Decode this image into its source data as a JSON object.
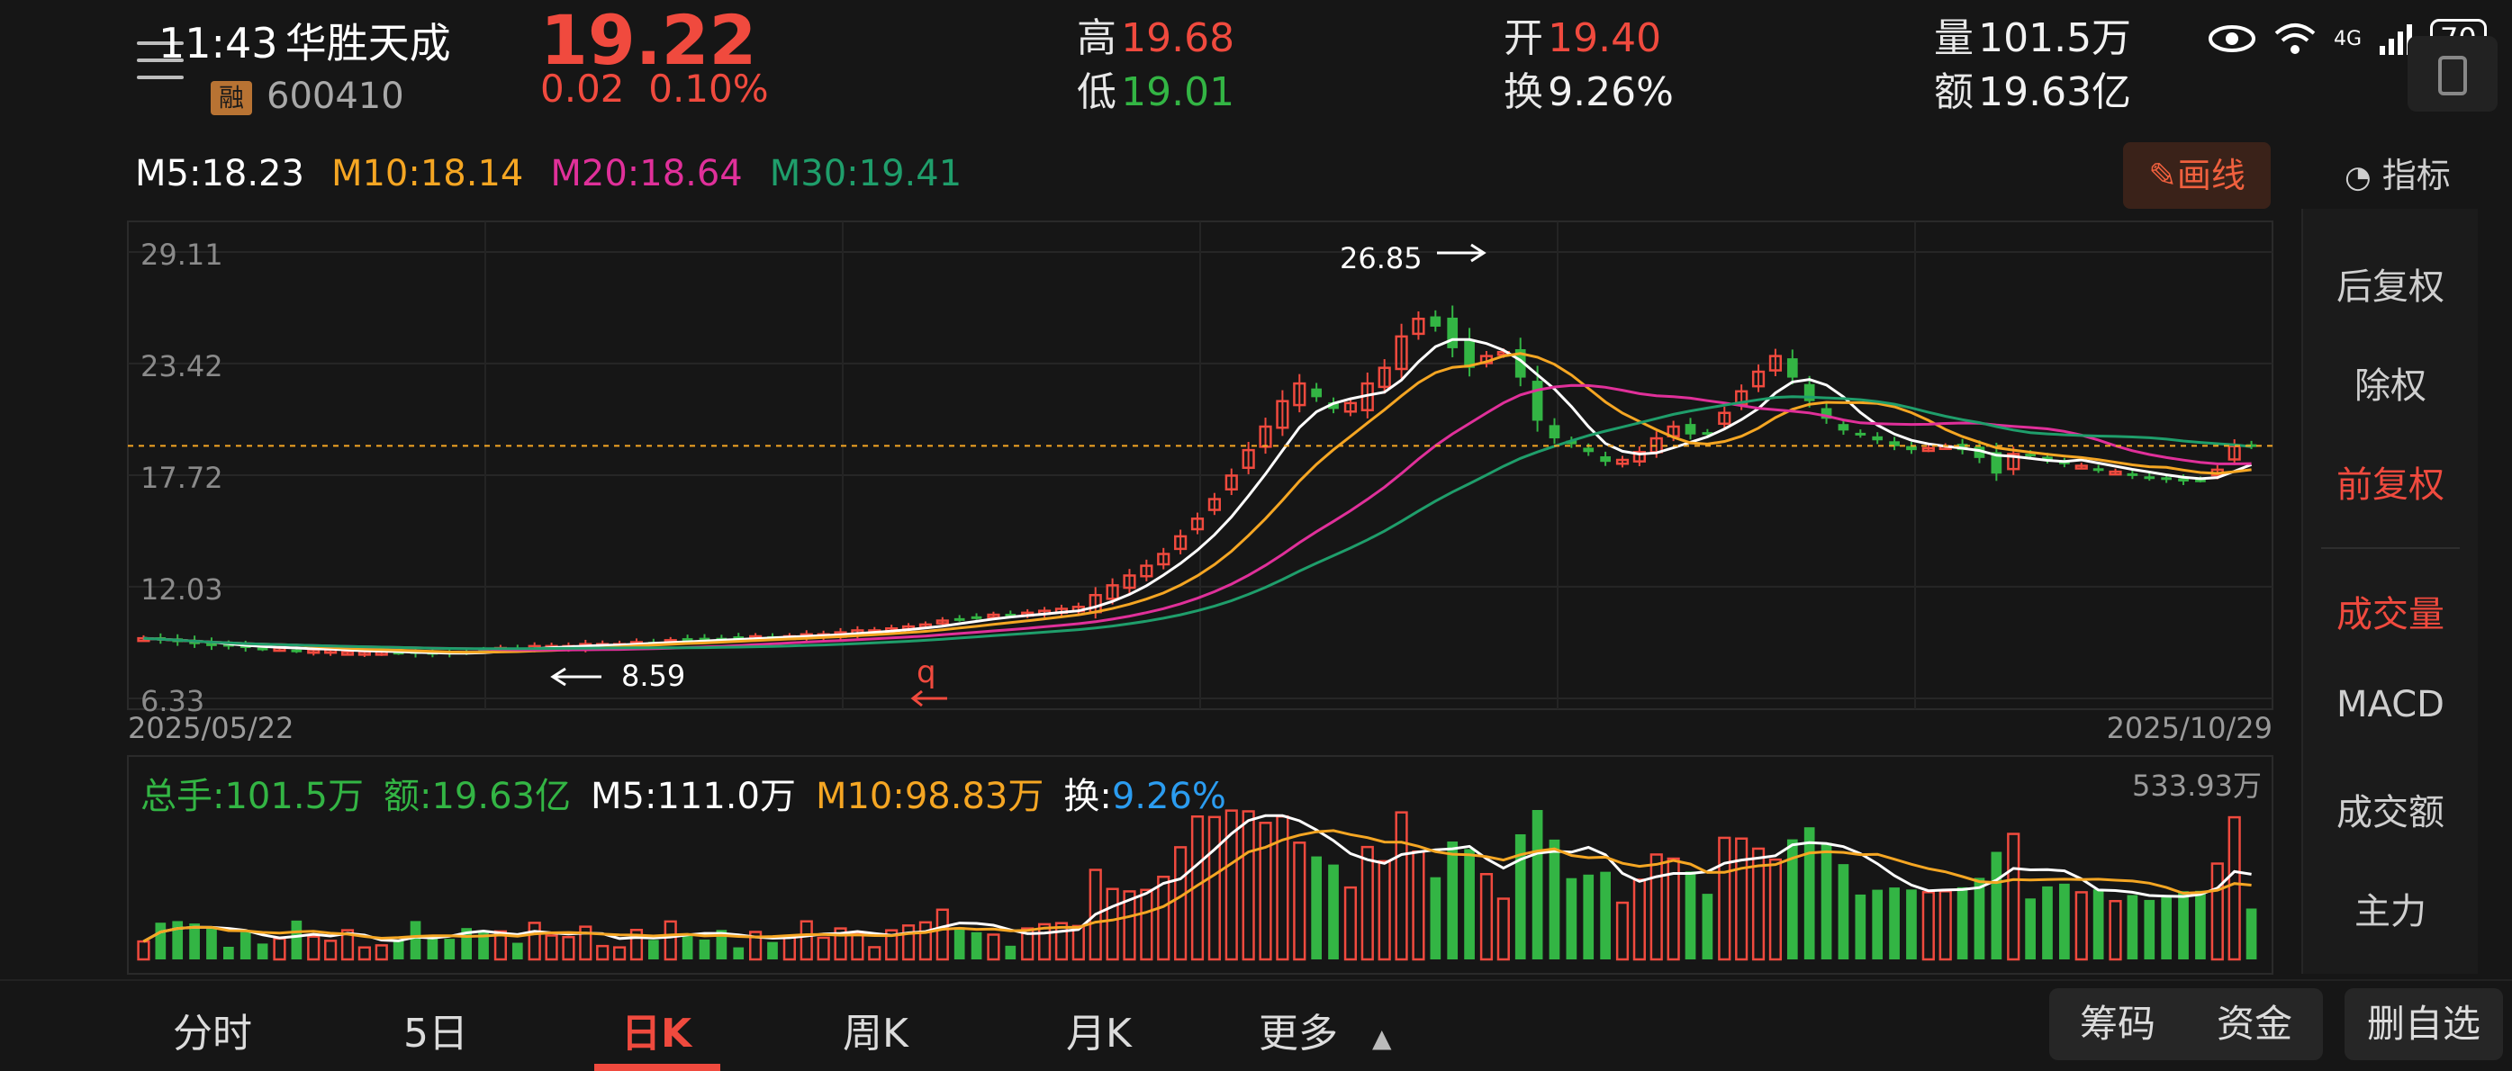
{
  "status_bar": {
    "time": "11:43",
    "network": "4G",
    "battery": "70"
  },
  "stock": {
    "name": "华胜天成",
    "code": "600410",
    "margin_badge": "融",
    "price": "19.22",
    "change": "0.02",
    "change_pct": "0.10%"
  },
  "quote": {
    "high_label": "高",
    "high": "19.68",
    "low_label": "低",
    "low": "19.01",
    "open_label": "开",
    "open": "19.40",
    "turnover_label": "换",
    "turnover": "9.26%",
    "volume_label": "量",
    "volume": "101.5万",
    "amount_label": "额",
    "amount": "19.63亿"
  },
  "ma": {
    "m5": "M5:18.23",
    "m10": "M10:18.14",
    "m20": "M20:18.64",
    "m30": "M30:19.41"
  },
  "toolbar": {
    "draw_label": "✎画线",
    "indicator_label": "指标"
  },
  "colors": {
    "up": "#f04a3e",
    "down": "#33b544",
    "m5": "#ffffff",
    "m10": "#f5a623",
    "m20": "#e0309a",
    "m30": "#1f9e6b",
    "turnover_blue": "#2b9cf0"
  },
  "chart_data": {
    "type": "candlestick",
    "y_ticks": [
      "29.11",
      "23.42",
      "17.72",
      "12.03",
      "6.33"
    ],
    "x_start": "2025/05/22",
    "x_end": "2025/10/29",
    "high_marker": "26.85",
    "low_marker": "8.59",
    "event_marker": "q",
    "current_price": 19.22,
    "ylim": [
      6.33,
      29.11
    ],
    "close": [
      9.4,
      9.3,
      9.2,
      9.1,
      9.0,
      9.0,
      8.9,
      8.9,
      8.9,
      8.8,
      8.8,
      8.8,
      8.7,
      8.7,
      8.7,
      8.7,
      8.6,
      8.6,
      8.6,
      8.7,
      8.8,
      8.9,
      8.9,
      9.0,
      9.0,
      9.0,
      9.1,
      9.1,
      9.1,
      9.2,
      9.2,
      9.3,
      9.3,
      9.3,
      9.4,
      9.4,
      9.5,
      9.5,
      9.5,
      9.6,
      9.6,
      9.7,
      9.8,
      9.8,
      9.9,
      10.0,
      10.1,
      10.3,
      10.4,
      10.5,
      10.6,
      10.6,
      10.7,
      10.8,
      10.9,
      11.0,
      11.6,
      12.1,
      12.6,
      13.1,
      13.7,
      14.6,
      15.5,
      16.5,
      17.7,
      19.0,
      20.2,
      21.5,
      22.4,
      21.7,
      21.1,
      21.4,
      22.4,
      23.2,
      24.8,
      25.7,
      25.3,
      24.2,
      23.2,
      23.8,
      24.0,
      22.7,
      20.5,
      19.6,
      19.3,
      18.9,
      18.4,
      18.5,
      18.9,
      19.6,
      20.2,
      19.8,
      19.9,
      20.9,
      22.0,
      23.0,
      23.8,
      22.7,
      21.5,
      20.6,
      20.0,
      19.8,
      19.5,
      19.2,
      19.0,
      19.1,
      19.2,
      19.0,
      18.6,
      17.8,
      18.8,
      18.7,
      18.5,
      18.3,
      18.2,
      18.0,
      17.9,
      17.7,
      17.6,
      17.5,
      17.4,
      17.5,
      18.0,
      19.2,
      19.22
    ],
    "volume_max": "533.93万",
    "volume_footer": "日K"
  },
  "right_panel": {
    "items": [
      "后复权",
      "除权",
      "前复权",
      "成交量",
      "MACD",
      "成交额",
      "主力"
    ]
  },
  "volume": {
    "total": "总手:101.5万",
    "amount": "额:19.63亿",
    "m5": "M5:111.0万",
    "m10": "M10:98.83万",
    "turnover_label": "换:",
    "turnover_value": "9.26%"
  },
  "bottom_tabs": {
    "fenshi": "分时",
    "five_day": "5日",
    "day_k": "日K",
    "week_k": "周K",
    "month_k": "月K",
    "more": "更多",
    "chips": "筹码",
    "funds": "资金",
    "remove_fav": "删自选"
  }
}
